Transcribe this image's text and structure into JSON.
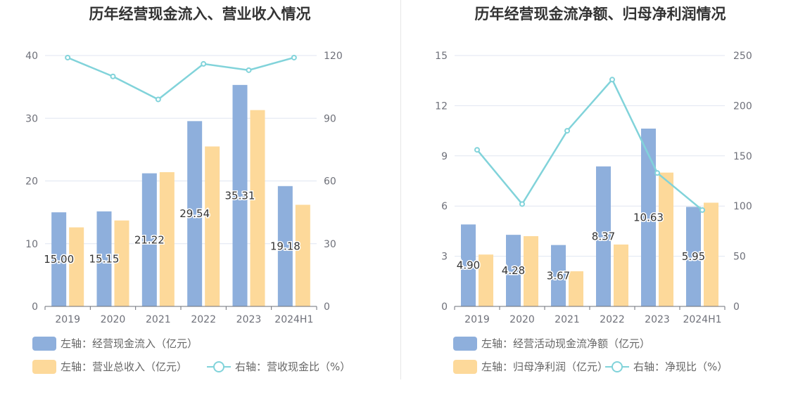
{
  "colors": {
    "bar1": "#8eafdc",
    "bar2": "#fdd99a",
    "line": "#81d3da",
    "grid": "#e0e6f1",
    "axis": "#6e7079"
  },
  "charts": [
    {
      "title": "历年经营现金流入、营业收入情况",
      "legend": {
        "bar1": "左轴：经营现金流入（亿元）",
        "bar2": "左轴：营业总收入（亿元）",
        "line": "右轴：营收现金比（%）"
      }
    },
    {
      "title": "历年经营现金流净额、归母净利润情况",
      "legend": {
        "bar1": "左轴：经营活动现金流净额（亿元）",
        "bar2": "左轴：归母净利润（亿元）",
        "line": "右轴：净现比（%）"
      }
    }
  ],
  "chart_data": [
    {
      "type": "bar",
      "title": "历年经营现金流入、营业收入情况",
      "categories": [
        "2019",
        "2020",
        "2021",
        "2022",
        "2023",
        "2024H1"
      ],
      "y_left": {
        "min": 0,
        "max": 40,
        "ticks": [
          0,
          10,
          20,
          30,
          40
        ]
      },
      "y_right": {
        "min": 0,
        "max": 120,
        "ticks": [
          0,
          30,
          60,
          90,
          120
        ]
      },
      "series": [
        {
          "name": "左轴：经营现金流入（亿元）",
          "type": "bar",
          "axis": "left",
          "values": [
            15.0,
            15.15,
            21.22,
            29.54,
            35.31,
            19.18
          ],
          "labels": [
            "15.00",
            "15.15",
            "21.22",
            "29.54",
            "35.31",
            "19.18"
          ]
        },
        {
          "name": "左轴：营业总收入（亿元）",
          "type": "bar",
          "axis": "left",
          "values": [
            12.6,
            13.7,
            21.4,
            25.5,
            31.3,
            16.2
          ]
        },
        {
          "name": "右轴：营收现金比（%）",
          "type": "line",
          "axis": "right",
          "values": [
            119,
            110,
            99,
            116,
            113,
            119
          ]
        }
      ],
      "grid": true,
      "legend_position": "bottom-left"
    },
    {
      "type": "bar",
      "title": "历年经营现金流净额、归母净利润情况",
      "categories": [
        "2019",
        "2020",
        "2021",
        "2022",
        "2023",
        "2024H1"
      ],
      "y_left": {
        "min": 0,
        "max": 15,
        "ticks": [
          0,
          3,
          6,
          9,
          12,
          15
        ]
      },
      "y_right": {
        "min": 0,
        "max": 250,
        "ticks": [
          0,
          50,
          100,
          150,
          200,
          250
        ]
      },
      "series": [
        {
          "name": "左轴：经营活动现金流净额（亿元）",
          "type": "bar",
          "axis": "left",
          "values": [
            4.9,
            4.28,
            3.67,
            8.37,
            10.63,
            5.95
          ],
          "labels": [
            "4.90",
            "4.28",
            "3.67",
            "8.37",
            "10.63",
            "5.95"
          ]
        },
        {
          "name": "左轴：归母净利润（亿元）",
          "type": "bar",
          "axis": "left",
          "values": [
            3.1,
            4.2,
            2.1,
            3.7,
            8.0,
            6.2
          ]
        },
        {
          "name": "右轴：净现比（%）",
          "type": "line",
          "axis": "right",
          "values": [
            156,
            102,
            175,
            226,
            133,
            96
          ]
        }
      ],
      "grid": true,
      "legend_position": "bottom-left"
    }
  ]
}
